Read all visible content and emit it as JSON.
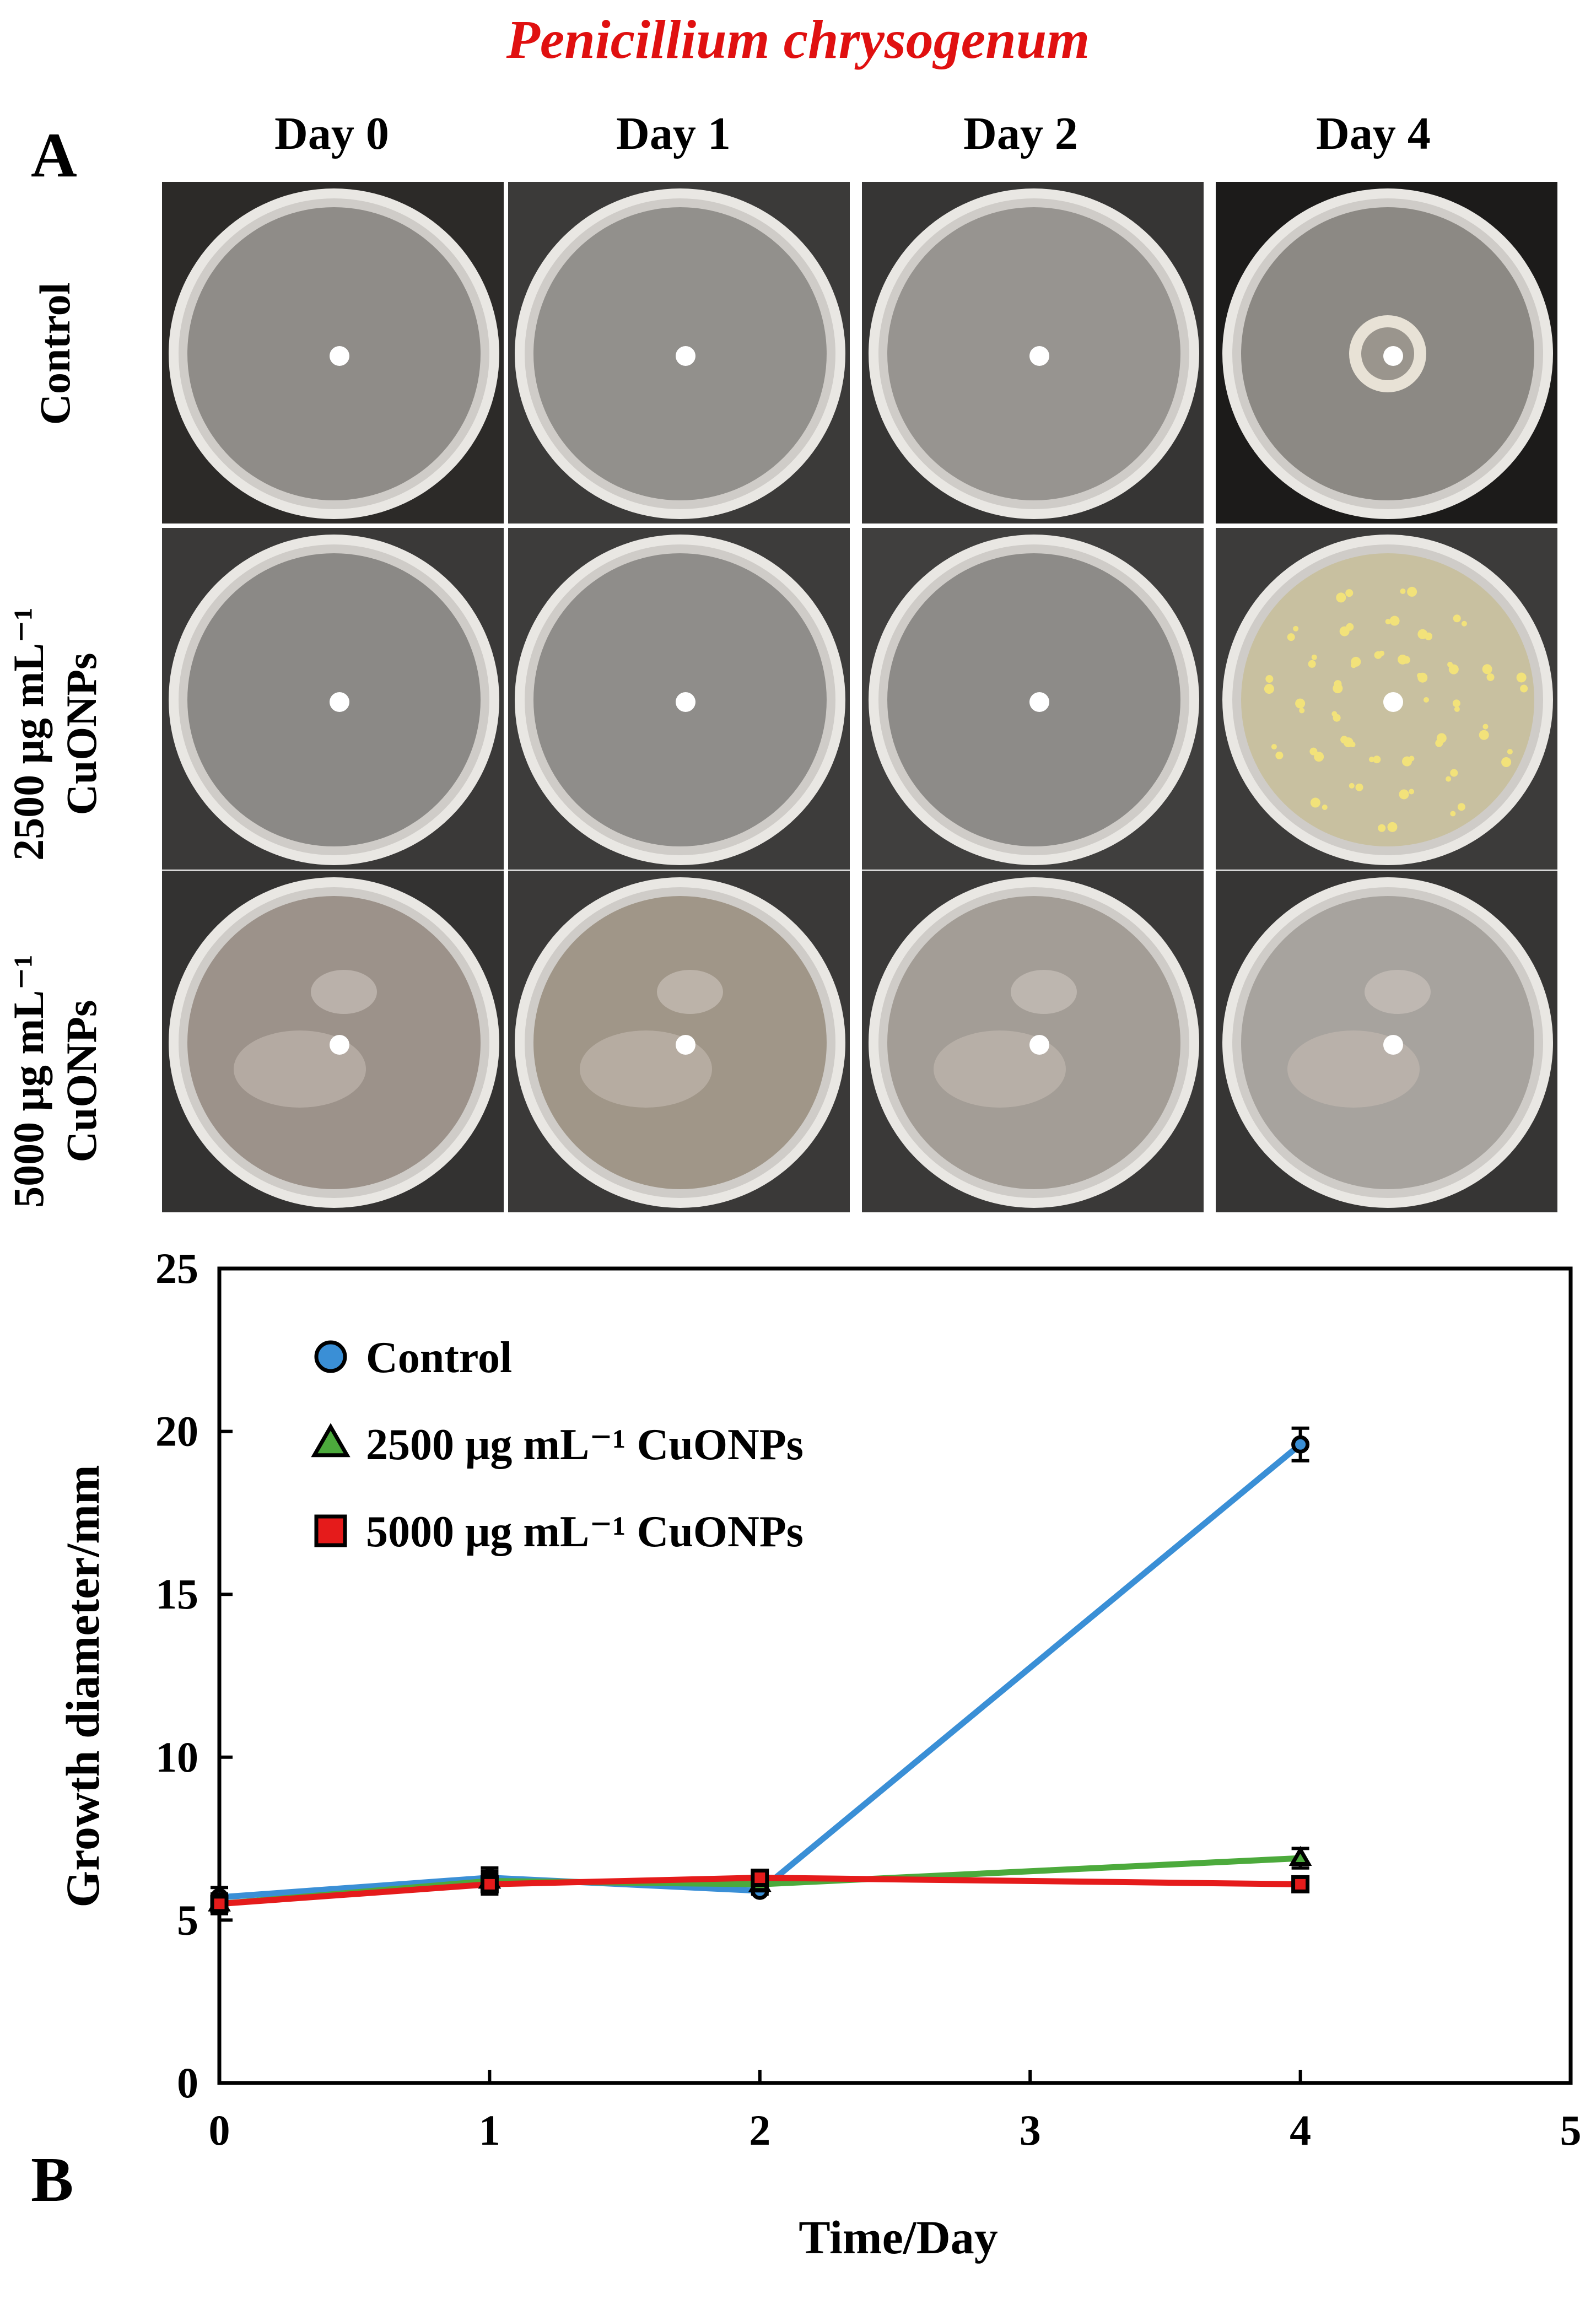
{
  "figure": {
    "title": "Penicillium chrysogenum",
    "panel_a_label": "A",
    "panel_b_label": "B",
    "columns": [
      "Day 0",
      "Day 1",
      "Day 2",
      "Day 4"
    ],
    "rows": [
      {
        "label": "Control"
      },
      {
        "label": "2500 μg mL⁻¹\nCuONPs"
      },
      {
        "label": "5000 μg mL⁻¹\nCuONPs"
      }
    ]
  },
  "chart_data": {
    "type": "line",
    "title": "",
    "xlabel": "Time/Day",
    "ylabel": "Growth diameter/mm",
    "xlim": [
      0,
      5
    ],
    "ylim": [
      0,
      25
    ],
    "xticks": [
      0,
      1,
      2,
      3,
      4,
      5
    ],
    "yticks": [
      0,
      5,
      10,
      15,
      20,
      25
    ],
    "grid": false,
    "legend_position": "top-left",
    "x": [
      0,
      1,
      2,
      4
    ],
    "series": [
      {
        "name": "Control",
        "marker": "circle",
        "color": "#3a8fd6",
        "values": [
          5.7,
          6.3,
          5.9,
          19.6
        ],
        "errors": [
          0.3,
          0.3,
          0.1,
          0.5
        ]
      },
      {
        "name": "2500 μg mL⁻¹ CuONPs",
        "marker": "triangle",
        "color": "#4caa3c",
        "values": [
          5.5,
          6.2,
          6.1,
          6.9
        ],
        "errors": [
          0.3,
          0.3,
          0.2,
          0.3
        ]
      },
      {
        "name": "5000 μg mL⁻¹ CuONPs",
        "marker": "square",
        "color": "#e51b1b",
        "values": [
          5.5,
          6.1,
          6.3,
          6.1
        ],
        "errors": [
          0.3,
          0.3,
          0.2,
          0.2
        ]
      }
    ]
  }
}
